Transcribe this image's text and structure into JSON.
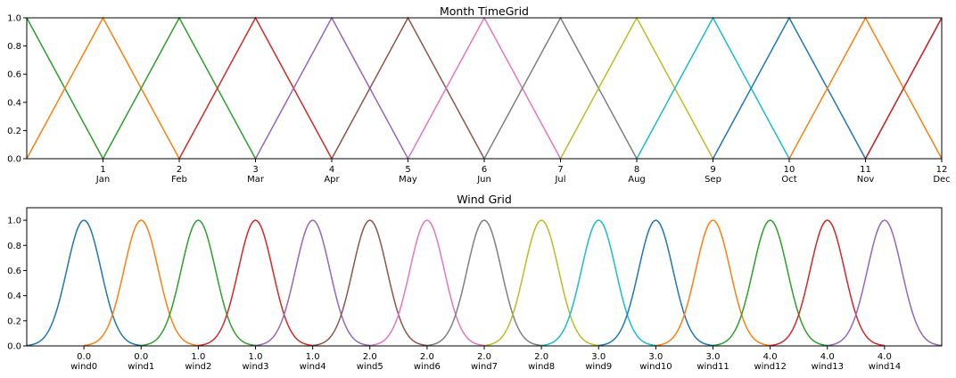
{
  "chart_data": [
    {
      "type": "line",
      "title": "Month TimeGrid",
      "xlim": [
        0,
        12
      ],
      "ylim": [
        0,
        1
      ],
      "yticks": [
        "0.0",
        "0.2",
        "0.4",
        "0.6",
        "0.8",
        "1.0"
      ],
      "xticks": [
        {
          "x": 1,
          "label": "1",
          "sublabel": "Jan"
        },
        {
          "x": 2,
          "label": "2",
          "sublabel": "Feb"
        },
        {
          "x": 3,
          "label": "3",
          "sublabel": "Mar"
        },
        {
          "x": 4,
          "label": "4",
          "sublabel": "Apr"
        },
        {
          "x": 5,
          "label": "5",
          "sublabel": "May"
        },
        {
          "x": 6,
          "label": "6",
          "sublabel": "Jun"
        },
        {
          "x": 7,
          "label": "7",
          "sublabel": "Jul"
        },
        {
          "x": 8,
          "label": "8",
          "sublabel": "Aug"
        },
        {
          "x": 9,
          "label": "9",
          "sublabel": "Sep"
        },
        {
          "x": 10,
          "label": "10",
          "sublabel": "Oct"
        },
        {
          "x": 11,
          "label": "11",
          "sublabel": "Nov"
        },
        {
          "x": 12,
          "label": "12",
          "sublabel": "Dec"
        }
      ],
      "grid": false,
      "series": [
        {
          "color": "#2ca02c",
          "x": [
            0,
            1
          ],
          "y": [
            1,
            0
          ]
        },
        {
          "color": "#ff7f0e",
          "x": [
            0,
            1,
            2
          ],
          "y": [
            0,
            1,
            0
          ]
        },
        {
          "color": "#2ca02c",
          "x": [
            1,
            2,
            3
          ],
          "y": [
            0,
            1,
            0
          ]
        },
        {
          "color": "#d62728",
          "x": [
            2,
            3,
            4
          ],
          "y": [
            0,
            1,
            0
          ]
        },
        {
          "color": "#9467bd",
          "x": [
            3,
            4,
            5
          ],
          "y": [
            0,
            1,
            0
          ]
        },
        {
          "color": "#8c564b",
          "x": [
            4,
            5,
            6
          ],
          "y": [
            0,
            1,
            0
          ]
        },
        {
          "color": "#e377c2",
          "x": [
            5,
            6,
            7
          ],
          "y": [
            0,
            1,
            0
          ]
        },
        {
          "color": "#7f7f7f",
          "x": [
            6,
            7,
            8
          ],
          "y": [
            0,
            1,
            0
          ]
        },
        {
          "color": "#bcbd22",
          "x": [
            7,
            8,
            9
          ],
          "y": [
            0,
            1,
            0
          ]
        },
        {
          "color": "#17becf",
          "x": [
            8,
            9,
            10
          ],
          "y": [
            0,
            1,
            0
          ]
        },
        {
          "color": "#1f77b4",
          "x": [
            9,
            10,
            11
          ],
          "y": [
            0,
            1,
            0
          ]
        },
        {
          "color": "#ff7f0e",
          "x": [
            10,
            11,
            12
          ],
          "y": [
            0,
            1,
            0
          ]
        },
        {
          "color": "#1f77b4",
          "x": [
            11,
            12
          ],
          "y": [
            0,
            1
          ]
        },
        {
          "color": "#d62728",
          "x": [
            11,
            12
          ],
          "y": [
            0,
            1
          ]
        }
      ]
    },
    {
      "type": "line",
      "title": "Wind Grid",
      "ylim": [
        0,
        1.1
      ],
      "yticks": [
        "0.0",
        "0.2",
        "0.4",
        "0.6",
        "0.8",
        "1.0"
      ],
      "grid": false,
      "curve_shape": "gaussian",
      "xlim_index": [
        -1,
        15
      ],
      "xticks": [
        {
          "label": "0.0",
          "sublabel": "wind0"
        },
        {
          "label": "0.0",
          "sublabel": "wind1"
        },
        {
          "label": "1.0",
          "sublabel": "wind2"
        },
        {
          "label": "1.0",
          "sublabel": "wind3"
        },
        {
          "label": "1.0",
          "sublabel": "wind4"
        },
        {
          "label": "2.0",
          "sublabel": "wind5"
        },
        {
          "label": "2.0",
          "sublabel": "wind6"
        },
        {
          "label": "2.0",
          "sublabel": "wind7"
        },
        {
          "label": "2.0",
          "sublabel": "wind8"
        },
        {
          "label": "3.0",
          "sublabel": "wind9"
        },
        {
          "label": "3.0",
          "sublabel": "wind10"
        },
        {
          "label": "3.0",
          "sublabel": "wind11"
        },
        {
          "label": "4.0",
          "sublabel": "wind12"
        },
        {
          "label": "4.0",
          "sublabel": "wind13"
        },
        {
          "label": "4.0",
          "sublabel": "wind14"
        }
      ],
      "series": [
        {
          "color": "#1f77b4",
          "center": 0,
          "from": -1,
          "to": 1
        },
        {
          "color": "#ff7f0e",
          "center": 1,
          "from": 0,
          "to": 2
        },
        {
          "color": "#2ca02c",
          "center": 2,
          "from": 1,
          "to": 3
        },
        {
          "color": "#d62728",
          "center": 3,
          "from": 2,
          "to": 4
        },
        {
          "color": "#9467bd",
          "center": 4,
          "from": 3,
          "to": 5
        },
        {
          "color": "#8c564b",
          "center": 5,
          "from": 4,
          "to": 6
        },
        {
          "color": "#e377c2",
          "center": 6,
          "from": 5,
          "to": 7
        },
        {
          "color": "#7f7f7f",
          "center": 7,
          "from": 6,
          "to": 8
        },
        {
          "color": "#bcbd22",
          "center": 8,
          "from": 7,
          "to": 9
        },
        {
          "color": "#17becf",
          "center": 9,
          "from": 8,
          "to": 10
        },
        {
          "color": "#1f77b4",
          "center": 10,
          "from": 9,
          "to": 11
        },
        {
          "color": "#ff7f0e",
          "center": 11,
          "from": 10,
          "to": 12
        },
        {
          "color": "#2ca02c",
          "center": 12,
          "from": 11,
          "to": 13
        },
        {
          "color": "#d62728",
          "center": 13,
          "from": 12,
          "to": 14
        },
        {
          "color": "#9467bd",
          "center": 14,
          "from": 13,
          "to": 15
        }
      ]
    }
  ]
}
